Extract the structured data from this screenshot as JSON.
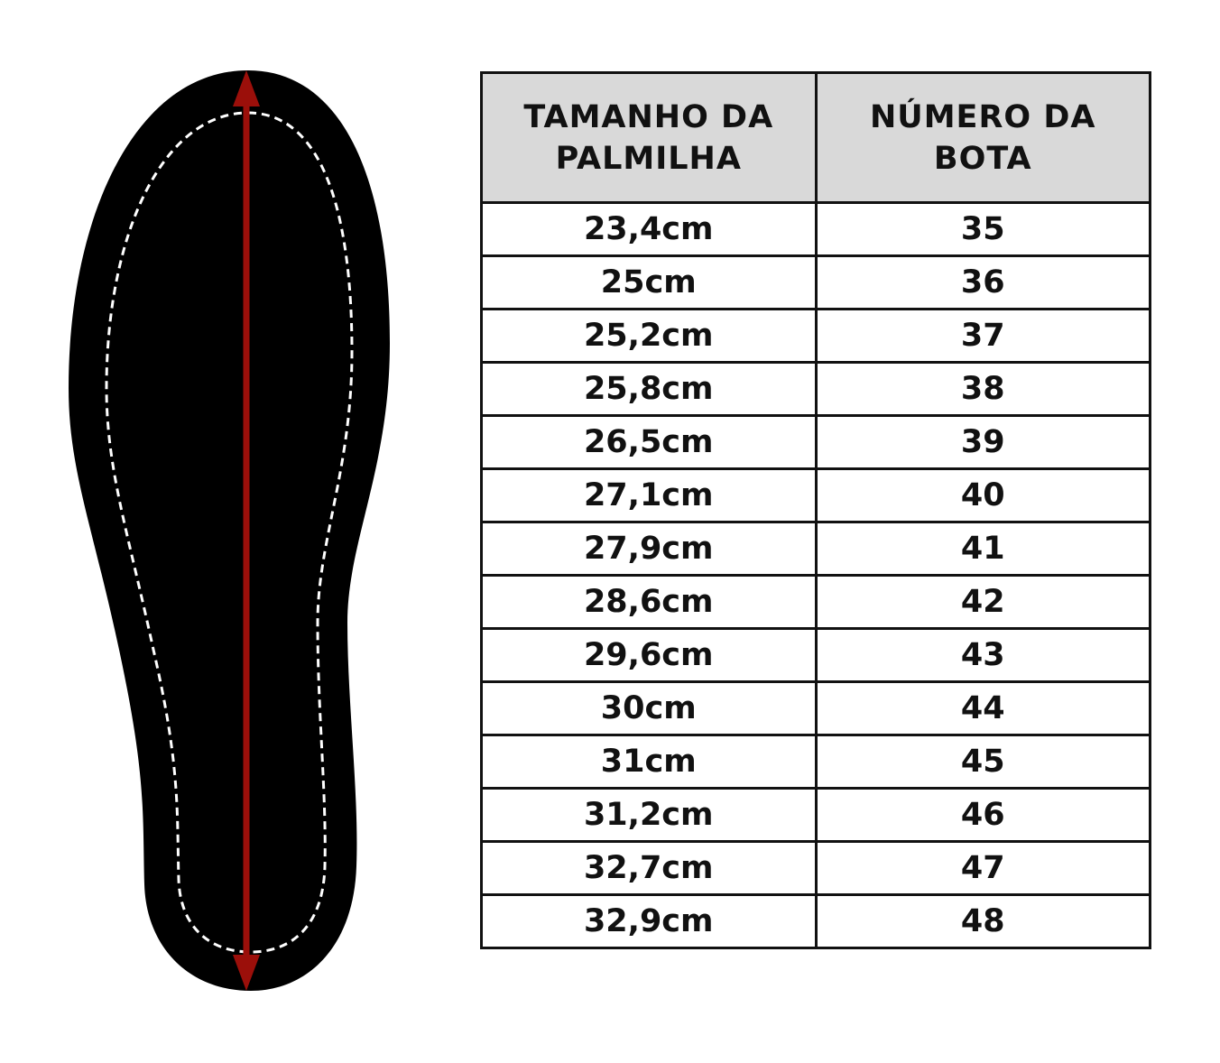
{
  "headers": {
    "insole_size": "TAMANHO DA PALMILHA",
    "boot_number": "NÚMERO DA BOTA"
  },
  "rows": [
    {
      "size": "23,4cm",
      "number": "35"
    },
    {
      "size": "25cm",
      "number": "36"
    },
    {
      "size": "25,2cm",
      "number": "37"
    },
    {
      "size": "25,8cm",
      "number": "38"
    },
    {
      "size": "26,5cm",
      "number": "39"
    },
    {
      "size": "27,1cm",
      "number": "40"
    },
    {
      "size": "27,9cm",
      "number": "41"
    },
    {
      "size": "28,6cm",
      "number": "42"
    },
    {
      "size": "29,6cm",
      "number": "43"
    },
    {
      "size": "30cm",
      "number": "44"
    },
    {
      "size": "31cm",
      "number": "45"
    },
    {
      "size": "31,2cm",
      "number": "46"
    },
    {
      "size": "32,7cm",
      "number": "47"
    },
    {
      "size": "32,9cm",
      "number": "48"
    }
  ],
  "colors": {
    "insole": "#000000",
    "arrow": "#9b0f0a",
    "header_bg": "#d9d9d9"
  },
  "icons": [
    "insole-illustration",
    "length-arrow-icon"
  ]
}
